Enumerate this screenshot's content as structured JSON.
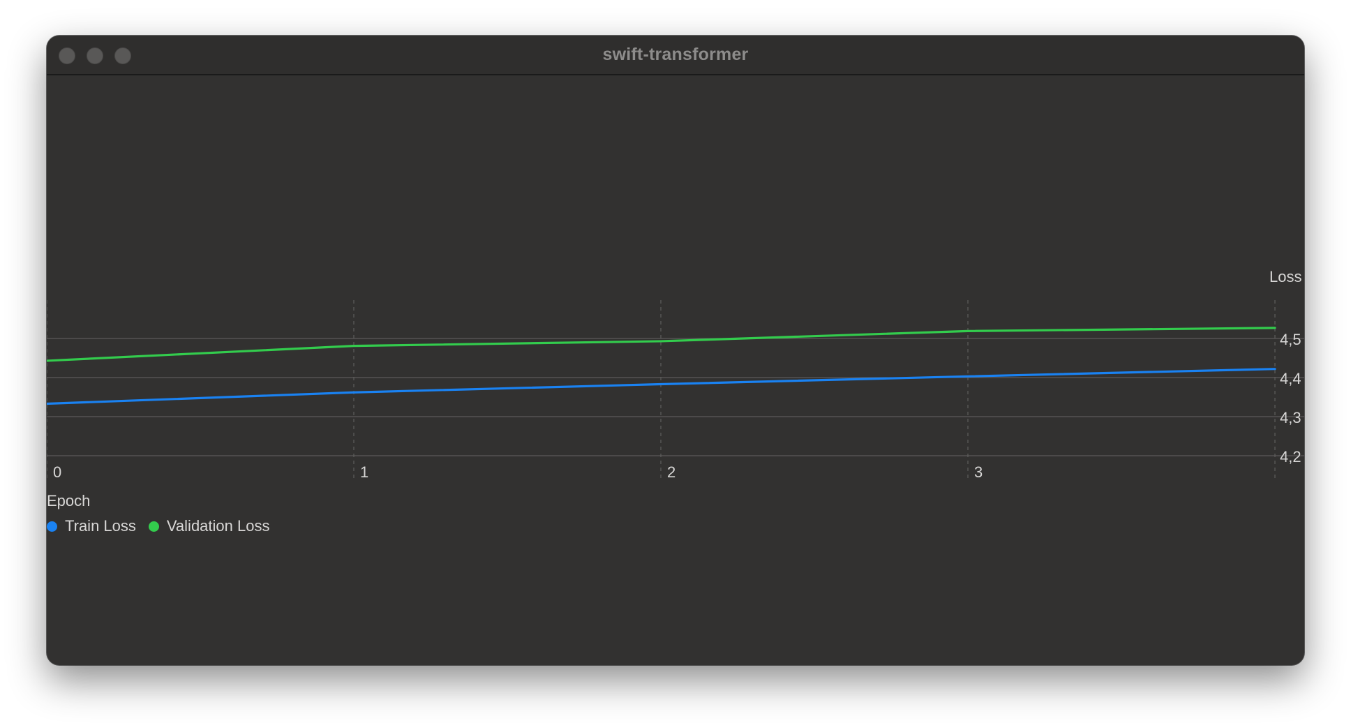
{
  "window": {
    "title": "swift-transformer"
  },
  "colors": {
    "train": "#1a82f2",
    "validation": "#33cc4d"
  },
  "chart_data": {
    "type": "line",
    "x_label": "Epoch",
    "y_label": "Loss",
    "x_ticks": [
      "0",
      "1",
      "2",
      "3"
    ],
    "y_ticks": [
      "4,5",
      "4,4",
      "4,3",
      "4,2"
    ],
    "x_range": [
      0,
      4
    ],
    "y_range": [
      4.2,
      4.5
    ],
    "grid": true,
    "legend_position": "bottom-left",
    "series": [
      {
        "name": "Train Loss",
        "x": [
          0,
          1,
          2,
          3,
          4
        ],
        "y": [
          4.333,
          4.362,
          4.383,
          4.403,
          4.422
        ]
      },
      {
        "name": "Validation Loss",
        "x": [
          0,
          1,
          2,
          3,
          4
        ],
        "y": [
          4.443,
          4.481,
          4.493,
          4.519,
          4.527
        ]
      }
    ]
  }
}
